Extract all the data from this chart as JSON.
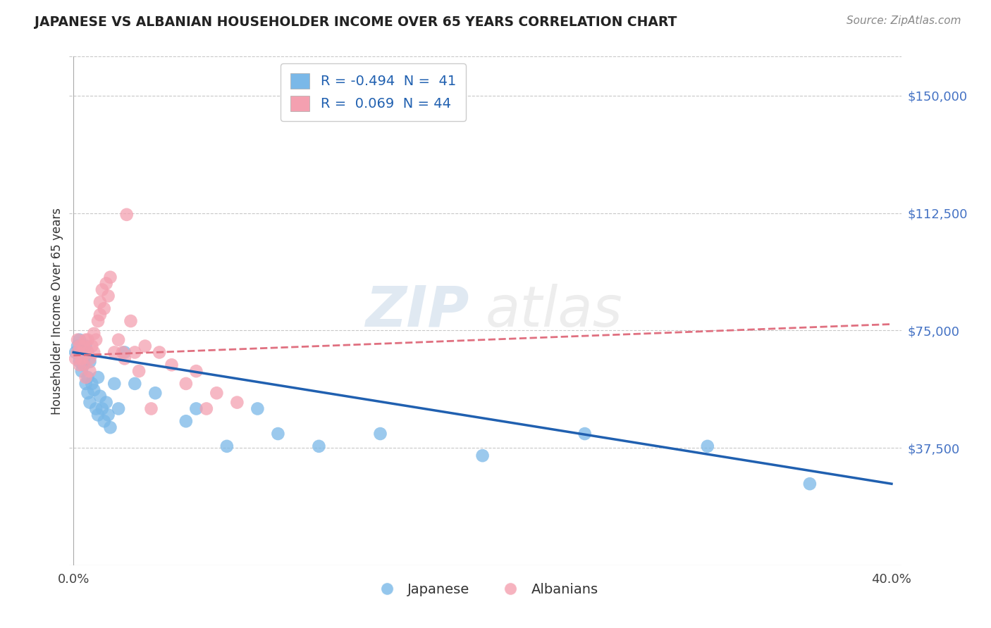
{
  "title": "JAPANESE VS ALBANIAN HOUSEHOLDER INCOME OVER 65 YEARS CORRELATION CHART",
  "source": "Source: ZipAtlas.com",
  "ylabel": "Householder Income Over 65 years",
  "ytick_labels": [
    "$37,500",
    "$75,000",
    "$112,500",
    "$150,000"
  ],
  "ytick_values": [
    37500,
    75000,
    112500,
    150000
  ],
  "ylim": [
    0,
    162500
  ],
  "xlim": [
    -0.002,
    0.405
  ],
  "japanese_color": "#7ab8e8",
  "albanian_color": "#f4a0b0",
  "japanese_line_color": "#2060b0",
  "albanian_line_color": "#e07080",
  "watermark": "ZIPatlas",
  "background_color": "#ffffff",
  "grid_color": "#c8c8c8",
  "japanese_x": [
    0.001,
    0.002,
    0.003,
    0.003,
    0.004,
    0.004,
    0.005,
    0.005,
    0.006,
    0.006,
    0.007,
    0.007,
    0.008,
    0.008,
    0.009,
    0.01,
    0.011,
    0.012,
    0.012,
    0.013,
    0.014,
    0.015,
    0.016,
    0.017,
    0.018,
    0.02,
    0.022,
    0.025,
    0.03,
    0.04,
    0.055,
    0.06,
    0.075,
    0.09,
    0.1,
    0.12,
    0.15,
    0.2,
    0.25,
    0.31,
    0.36
  ],
  "japanese_y": [
    68000,
    70000,
    65000,
    72000,
    68000,
    62000,
    64000,
    66000,
    70000,
    58000,
    60000,
    55000,
    65000,
    52000,
    58000,
    56000,
    50000,
    48000,
    60000,
    54000,
    50000,
    46000,
    52000,
    48000,
    44000,
    58000,
    50000,
    68000,
    58000,
    55000,
    46000,
    50000,
    38000,
    50000,
    42000,
    38000,
    42000,
    35000,
    42000,
    38000,
    26000
  ],
  "albanian_x": [
    0.001,
    0.002,
    0.002,
    0.003,
    0.003,
    0.004,
    0.004,
    0.005,
    0.005,
    0.006,
    0.006,
    0.007,
    0.007,
    0.008,
    0.008,
    0.009,
    0.01,
    0.01,
    0.011,
    0.012,
    0.013,
    0.013,
    0.014,
    0.015,
    0.016,
    0.017,
    0.018,
    0.02,
    0.022,
    0.024,
    0.025,
    0.026,
    0.028,
    0.03,
    0.032,
    0.035,
    0.038,
    0.042,
    0.048,
    0.055,
    0.06,
    0.065,
    0.07,
    0.08
  ],
  "albanian_y": [
    66000,
    68000,
    72000,
    64000,
    70000,
    66000,
    68000,
    70000,
    64000,
    72000,
    60000,
    68000,
    72000,
    66000,
    62000,
    70000,
    68000,
    74000,
    72000,
    78000,
    80000,
    84000,
    88000,
    82000,
    90000,
    86000,
    92000,
    68000,
    72000,
    68000,
    66000,
    112000,
    78000,
    68000,
    62000,
    70000,
    50000,
    68000,
    64000,
    58000,
    62000,
    50000,
    55000,
    52000
  ]
}
